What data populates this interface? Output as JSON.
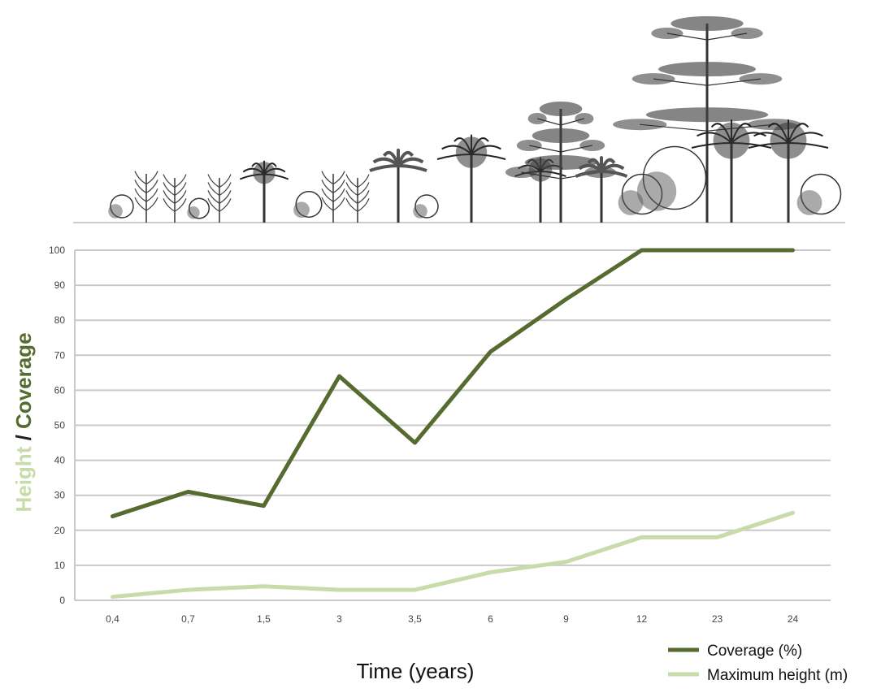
{
  "chart_data": {
    "type": "line",
    "categories": [
      "0,4",
      "0,7",
      "1,5",
      "3",
      "3,5",
      "6",
      "9",
      "12",
      "23",
      "24"
    ],
    "series": [
      {
        "name": "Coverage (%)",
        "color": "#556b2f",
        "values": [
          24,
          31,
          27,
          64,
          45,
          71,
          86,
          100,
          100,
          100
        ]
      },
      {
        "name": "Maximum height (m)",
        "color": "#c8dcaa",
        "values": [
          1,
          3,
          4,
          3,
          3,
          8,
          11,
          18,
          18,
          25
        ]
      }
    ],
    "ylim": [
      0,
      100
    ],
    "yticks": [
      "0",
      "10",
      "20",
      "30",
      "40",
      "50",
      "60",
      "70",
      "80",
      "90",
      "100"
    ],
    "xlabel": "Time (years)",
    "ylabel_parts": [
      {
        "text": "Height",
        "color": "#c8dcaa"
      },
      {
        "text": " / ",
        "color": "#222222"
      },
      {
        "text": "Coverage",
        "color": "#556b2f"
      }
    ],
    "grid": true,
    "legend_position": "bottom-right"
  },
  "illustration": {
    "description_icon": "tree-succession-illustration-icon"
  }
}
